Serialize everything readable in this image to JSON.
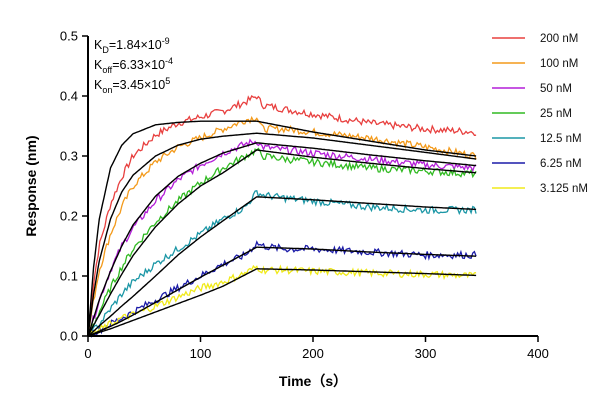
{
  "chart_data": {
    "type": "line",
    "xlabel": "Time（s）",
    "ylabel": "Response (nm)",
    "xlim": [
      0,
      400
    ],
    "ylim": [
      0,
      0.5
    ],
    "xticks": [
      0,
      100,
      200,
      300,
      400
    ],
    "yticks": [
      0.0,
      0.1,
      0.2,
      0.3,
      0.4,
      0.5
    ],
    "xtick_labels": [
      "0",
      "100",
      "200",
      "300",
      "400"
    ],
    "ytick_labels": [
      "0.0",
      "0.1",
      "0.2",
      "0.3",
      "0.4",
      "0.5"
    ],
    "grid": false,
    "legend_position": "right",
    "annotations": [
      {
        "base": "K",
        "sub": "D",
        "value": "=1.84×10",
        "exp": "-9"
      },
      {
        "base": "K",
        "sub": "off",
        "value": "=6.33×10",
        "exp": "-4"
      },
      {
        "base": "K",
        "sub": "on",
        "value": "=3.45×10",
        "exp": "5"
      }
    ],
    "series": [
      {
        "name": "200 nM",
        "color": "#e8403f",
        "x": [
          0,
          5,
          10,
          20,
          30,
          40,
          60,
          80,
          100,
          120,
          140,
          150,
          155,
          175,
          200,
          250,
          300,
          345
        ],
        "y": [
          0.0,
          0.09,
          0.15,
          0.22,
          0.265,
          0.3,
          0.335,
          0.355,
          0.365,
          0.375,
          0.39,
          0.4,
          0.385,
          0.378,
          0.37,
          0.355,
          0.345,
          0.34
        ]
      },
      {
        "name": "100 nM",
        "color": "#f39a1b",
        "x": [
          0,
          5,
          10,
          20,
          30,
          40,
          60,
          80,
          100,
          120,
          140,
          150,
          155,
          175,
          200,
          250,
          300,
          345
        ],
        "y": [
          0.0,
          0.06,
          0.11,
          0.17,
          0.215,
          0.25,
          0.29,
          0.315,
          0.33,
          0.345,
          0.36,
          0.365,
          0.345,
          0.345,
          0.34,
          0.33,
          0.315,
          0.3
        ]
      },
      {
        "name": "50 nM",
        "color": "#b41fd8",
        "x": [
          0,
          5,
          10,
          20,
          30,
          40,
          60,
          80,
          100,
          120,
          140,
          150,
          155,
          175,
          200,
          250,
          300,
          345
        ],
        "y": [
          0.0,
          0.03,
          0.06,
          0.11,
          0.15,
          0.18,
          0.225,
          0.26,
          0.285,
          0.305,
          0.32,
          0.325,
          0.315,
          0.31,
          0.305,
          0.295,
          0.285,
          0.28
        ]
      },
      {
        "name": "25 nM",
        "color": "#31ba22",
        "x": [
          0,
          5,
          10,
          20,
          30,
          40,
          60,
          80,
          100,
          120,
          140,
          150,
          155,
          175,
          200,
          250,
          300,
          345
        ],
        "y": [
          0.0,
          0.02,
          0.04,
          0.08,
          0.115,
          0.145,
          0.19,
          0.225,
          0.255,
          0.28,
          0.3,
          0.31,
          0.3,
          0.295,
          0.29,
          0.28,
          0.275,
          0.27
        ]
      },
      {
        "name": "12.5 nM",
        "color": "#1c97a6",
        "x": [
          0,
          5,
          10,
          20,
          30,
          40,
          60,
          80,
          100,
          120,
          140,
          150,
          155,
          175,
          200,
          250,
          300,
          345
        ],
        "y": [
          0.0,
          0.01,
          0.02,
          0.045,
          0.07,
          0.09,
          0.12,
          0.145,
          0.17,
          0.195,
          0.215,
          0.24,
          0.235,
          0.23,
          0.225,
          0.215,
          0.21,
          0.21
        ]
      },
      {
        "name": "6.25 nM",
        "color": "#1c1ca8",
        "x": [
          0,
          5,
          10,
          20,
          30,
          40,
          60,
          80,
          100,
          120,
          140,
          150,
          155,
          175,
          200,
          250,
          300,
          345
        ],
        "y": [
          0.0,
          0.005,
          0.01,
          0.02,
          0.03,
          0.04,
          0.06,
          0.08,
          0.1,
          0.12,
          0.135,
          0.155,
          0.15,
          0.145,
          0.145,
          0.14,
          0.135,
          0.135
        ]
      },
      {
        "name": "3.125 nM",
        "color": "#f0ea1a",
        "x": [
          0,
          5,
          10,
          20,
          30,
          40,
          60,
          80,
          100,
          120,
          140,
          150,
          155,
          175,
          200,
          250,
          300,
          345
        ],
        "y": [
          0.0,
          0.005,
          0.01,
          0.02,
          0.03,
          0.035,
          0.05,
          0.065,
          0.08,
          0.09,
          0.105,
          0.115,
          0.11,
          0.11,
          0.108,
          0.105,
          0.103,
          0.1
        ]
      }
    ],
    "fits": [
      {
        "color": "#000000",
        "x": [
          0,
          5,
          10,
          20,
          30,
          40,
          60,
          80,
          100,
          120,
          150,
          200,
          250,
          300,
          345
        ],
        "y": [
          0.0,
          0.115,
          0.195,
          0.28,
          0.318,
          0.337,
          0.352,
          0.356,
          0.358,
          0.358,
          0.358,
          0.34,
          0.325,
          0.31,
          0.3
        ]
      },
      {
        "color": "#000000",
        "x": [
          0,
          5,
          10,
          20,
          30,
          40,
          60,
          80,
          100,
          120,
          150,
          200,
          250,
          300,
          345
        ],
        "y": [
          0.0,
          0.07,
          0.125,
          0.195,
          0.24,
          0.268,
          0.3,
          0.318,
          0.328,
          0.333,
          0.338,
          0.33,
          0.318,
          0.306,
          0.295
        ]
      },
      {
        "color": "#000000",
        "x": [
          0,
          5,
          10,
          20,
          30,
          40,
          60,
          80,
          100,
          120,
          150,
          200,
          250,
          300,
          345
        ],
        "y": [
          0.0,
          0.03,
          0.06,
          0.108,
          0.15,
          0.185,
          0.233,
          0.266,
          0.288,
          0.305,
          0.322,
          0.313,
          0.302,
          0.292,
          0.284
        ]
      },
      {
        "color": "#000000",
        "x": [
          0,
          5,
          10,
          20,
          30,
          40,
          60,
          80,
          100,
          120,
          150,
          200,
          250,
          300,
          345
        ],
        "y": [
          0.0,
          0.018,
          0.035,
          0.07,
          0.103,
          0.134,
          0.182,
          0.22,
          0.25,
          0.272,
          0.31,
          0.298,
          0.288,
          0.279,
          0.272
        ]
      },
      {
        "color": "#000000",
        "x": [
          0,
          5,
          10,
          20,
          30,
          40,
          60,
          80,
          100,
          120,
          150,
          200,
          250,
          300,
          345
        ],
        "y": [
          0.0,
          0.008,
          0.017,
          0.033,
          0.05,
          0.066,
          0.1,
          0.135,
          0.165,
          0.192,
          0.232,
          0.227,
          0.221,
          0.215,
          0.211
        ]
      },
      {
        "color": "#000000",
        "x": [
          0,
          5,
          10,
          20,
          30,
          40,
          60,
          80,
          100,
          120,
          150,
          200,
          250,
          300,
          345
        ],
        "y": [
          0.0,
          0.004,
          0.008,
          0.016,
          0.025,
          0.035,
          0.056,
          0.077,
          0.098,
          0.118,
          0.148,
          0.145,
          0.14,
          0.136,
          0.133
        ]
      },
      {
        "color": "#000000",
        "x": [
          0,
          5,
          10,
          20,
          30,
          40,
          60,
          80,
          100,
          120,
          150,
          200,
          250,
          300,
          345
        ],
        "y": [
          0.0,
          0.003,
          0.006,
          0.012,
          0.019,
          0.026,
          0.04,
          0.054,
          0.068,
          0.083,
          0.112,
          0.11,
          0.107,
          0.104,
          0.101
        ]
      }
    ]
  }
}
